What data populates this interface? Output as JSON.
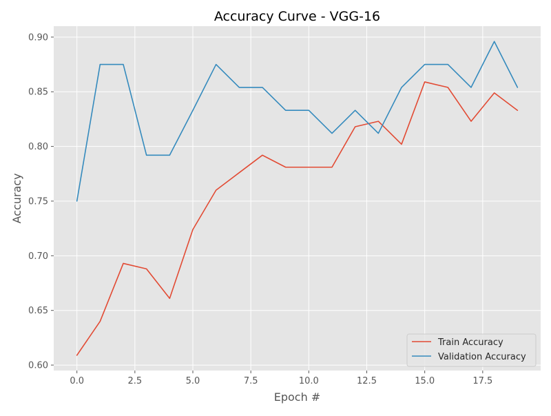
{
  "chart_data": {
    "type": "line",
    "title": "Accuracy Curve - VGG-16",
    "xlabel": "Epoch #",
    "ylabel": "Accuracy",
    "x": [
      0,
      1,
      2,
      3,
      4,
      5,
      6,
      7,
      8,
      9,
      10,
      11,
      12,
      13,
      14,
      15,
      16,
      17,
      18,
      19
    ],
    "xlim": [
      -1,
      20
    ],
    "ylim": [
      0.595,
      0.91
    ],
    "xticks": [
      0.0,
      2.5,
      5.0,
      7.5,
      10.0,
      12.5,
      15.0,
      17.5
    ],
    "xtick_labels": [
      "0.0",
      "2.5",
      "5.0",
      "7.5",
      "10.0",
      "12.5",
      "15.0",
      "17.5"
    ],
    "yticks": [
      0.6,
      0.65,
      0.7,
      0.75,
      0.8,
      0.85,
      0.9
    ],
    "ytick_labels": [
      "0.60",
      "0.65",
      "0.70",
      "0.75",
      "0.80",
      "0.85",
      "0.90"
    ],
    "grid": true,
    "legend_position": "lower-right",
    "series": [
      {
        "name": "Train Accuracy",
        "color": "#E24A33",
        "values": [
          0.609,
          0.64,
          0.693,
          0.688,
          0.661,
          0.724,
          0.76,
          0.776,
          0.792,
          0.781,
          0.781,
          0.781,
          0.818,
          0.823,
          0.802,
          0.859,
          0.854,
          0.823,
          0.849,
          0.833
        ]
      },
      {
        "name": "Validation Accuracy",
        "color": "#348ABD",
        "values": [
          0.75,
          0.875,
          0.875,
          0.792,
          0.792,
          0.833,
          0.875,
          0.854,
          0.854,
          0.833,
          0.833,
          0.812,
          0.833,
          0.812,
          0.854,
          0.875,
          0.875,
          0.854,
          0.896,
          0.854
        ]
      }
    ]
  }
}
